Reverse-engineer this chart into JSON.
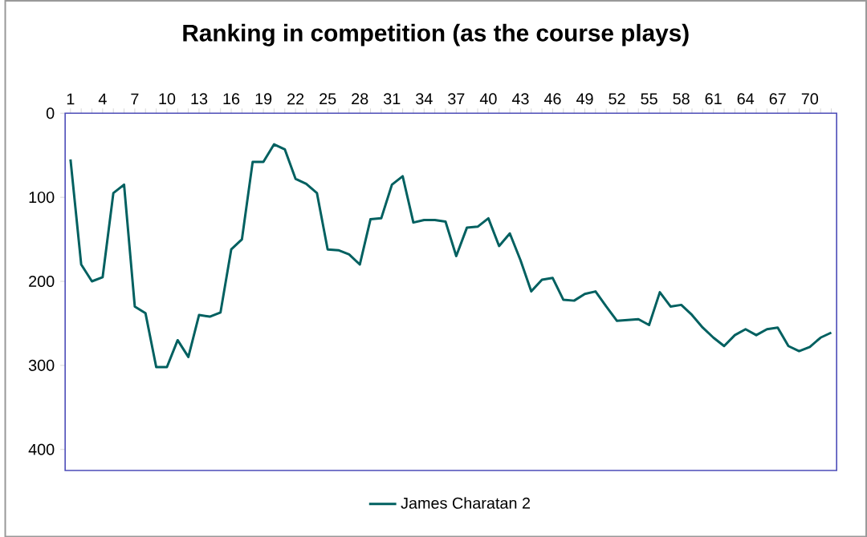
{
  "chart_data": {
    "type": "line",
    "title": "Ranking in competition (as the course plays)",
    "categories": [
      "1",
      null,
      null,
      "4",
      null,
      null,
      "7",
      null,
      null,
      "10",
      null,
      null,
      "13",
      null,
      null,
      "16",
      null,
      null,
      "19",
      null,
      null,
      "22",
      null,
      null,
      "25",
      null,
      null,
      "28",
      null,
      null,
      "31",
      null,
      null,
      "34",
      null,
      null,
      "37",
      null,
      null,
      "40",
      null,
      null,
      "43",
      null,
      null,
      "46",
      null,
      null,
      "49",
      null,
      null,
      "52",
      null,
      null,
      "55",
      null,
      null,
      "58",
      null,
      null,
      "61",
      null,
      null,
      "64",
      null,
      null,
      "67",
      null,
      null,
      "70",
      null,
      null
    ],
    "series": [
      {
        "name": "James Charatan 2",
        "color": "#006060",
        "values": [
          55,
          180,
          200,
          195,
          95,
          85,
          230,
          238,
          302,
          302,
          270,
          290,
          240,
          242,
          237,
          162,
          150,
          58,
          58,
          37,
          43,
          78,
          84,
          95,
          162,
          163,
          168,
          180,
          126,
          125,
          85,
          75,
          130,
          127,
          127,
          129,
          170,
          136,
          135,
          125,
          158,
          143,
          175,
          212,
          198,
          196,
          222,
          223,
          215,
          212,
          230,
          247,
          246,
          245,
          252,
          213,
          230,
          228,
          240,
          255,
          267,
          277,
          264,
          257,
          264,
          257,
          255,
          277,
          283,
          278,
          267,
          261
        ]
      }
    ],
    "ylim": [
      425,
      0
    ],
    "yticks": [
      0,
      100,
      200,
      300,
      400
    ],
    "legend": "bottom"
  }
}
